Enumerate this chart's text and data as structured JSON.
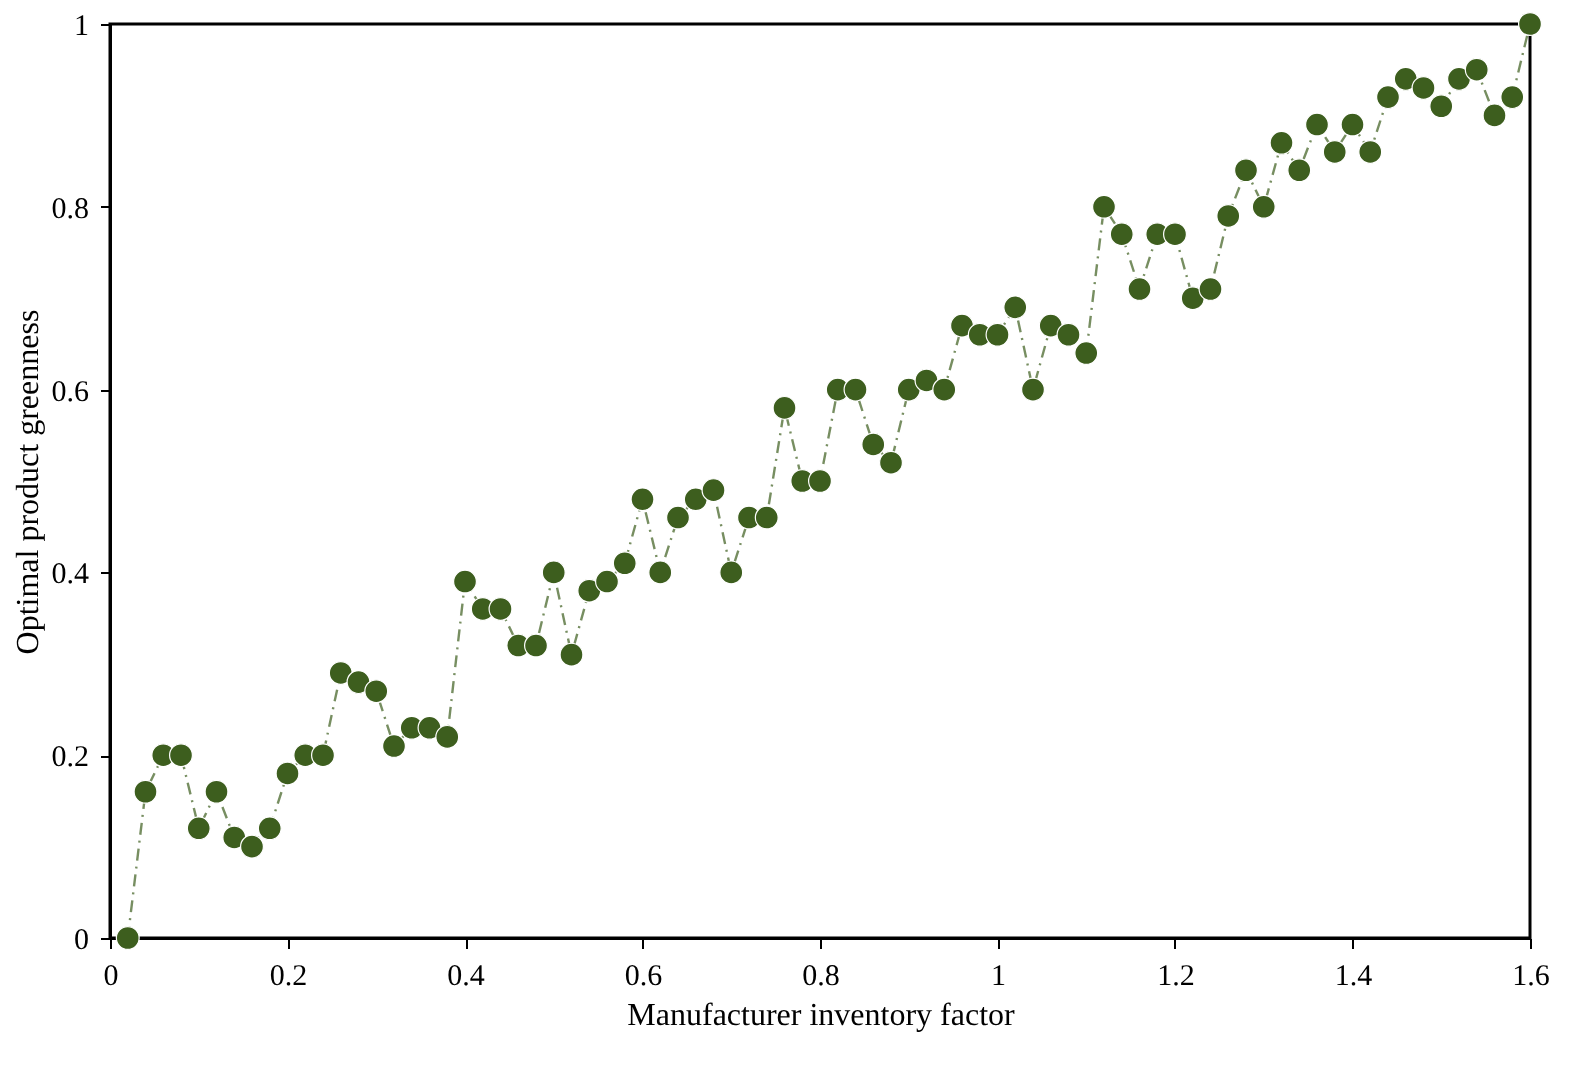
{
  "chart_data": {
    "type": "line",
    "xlabel": "Manufacturer inventory factor",
    "ylabel": "Optimal product greenness",
    "x": [
      0.02,
      0.04,
      0.06,
      0.08,
      0.1,
      0.12,
      0.14,
      0.16,
      0.18,
      0.2,
      0.22,
      0.24,
      0.26,
      0.28,
      0.3,
      0.32,
      0.34,
      0.36,
      0.38,
      0.4,
      0.42,
      0.44,
      0.46,
      0.48,
      0.5,
      0.52,
      0.54,
      0.56,
      0.58,
      0.6,
      0.62,
      0.64,
      0.66,
      0.68,
      0.7,
      0.72,
      0.74,
      0.76,
      0.78,
      0.8,
      0.82,
      0.84,
      0.86,
      0.88,
      0.9,
      0.92,
      0.94,
      0.96,
      0.98,
      1.0,
      1.02,
      1.04,
      1.06,
      1.08,
      1.1,
      1.12,
      1.14,
      1.16,
      1.18,
      1.2,
      1.22,
      1.24,
      1.26,
      1.28,
      1.3,
      1.32,
      1.34,
      1.36,
      1.38,
      1.4,
      1.42,
      1.44,
      1.46,
      1.48,
      1.5,
      1.52,
      1.54,
      1.56,
      1.58,
      1.6
    ],
    "series": [
      {
        "color": "#3d5e1e",
        "values": [
          0,
          0.16,
          0.2,
          0.2,
          0.12,
          0.16,
          0.11,
          0.1,
          0.12,
          0.18,
          0.2,
          0.2,
          0.29,
          0.28,
          0.27,
          0.21,
          0.23,
          0.23,
          0.22,
          0.39,
          0.36,
          0.36,
          0.32,
          0.32,
          0.4,
          0.31,
          0.38,
          0.39,
          0.41,
          0.48,
          0.4,
          0.46,
          0.48,
          0.49,
          0.4,
          0.46,
          0.46,
          0.58,
          0.5,
          0.5,
          0.6,
          0.6,
          0.54,
          0.52,
          0.6,
          0.61,
          0.6,
          0.67,
          0.66,
          0.66,
          0.69,
          0.6,
          0.67,
          0.66,
          0.64,
          0.8,
          0.77,
          0.71,
          0.77,
          0.77,
          0.7,
          0.71,
          0.79,
          0.84,
          0.8,
          0.87,
          0.84,
          0.89,
          0.86,
          0.89,
          0.86,
          0.92,
          0.94,
          0.93,
          0.91,
          0.94,
          0.95,
          0.9,
          0.92,
          1.0
        ]
      }
    ],
    "xlim": [
      0,
      1.6
    ],
    "xticks": [
      0,
      0.2,
      0.4,
      0.6,
      0.8,
      1,
      1.2,
      1.4,
      1.6
    ],
    "ylim": [
      0,
      1
    ],
    "yticks": [
      0,
      0.2,
      0.4,
      0.6,
      0.8,
      1
    ],
    "grid": false,
    "marker": "circle",
    "line_style": "dashed"
  }
}
